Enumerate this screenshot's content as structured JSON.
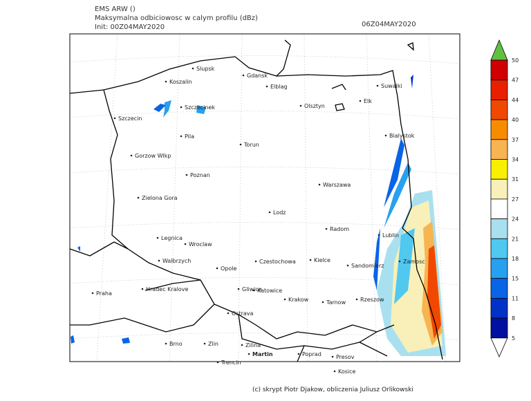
{
  "header": {
    "model": "EMS ARW ()",
    "field": "Maksymalna odbiciowosc w calym profilu (dBz)",
    "init": "Init: 00Z04MAY2020",
    "valid": "06Z04MAY2020"
  },
  "cities": [
    "Slupsk",
    "Gdansk",
    "Koszalin",
    "Elblag",
    "Suwalki",
    "Szczecinek",
    "Olsztyn",
    "Elk",
    "Szczecin",
    "Bialystok",
    "Pila",
    "Torun",
    "Gorzow Wlkp",
    "Poznan",
    "Warszawa",
    "Zielona Gora",
    "Lodz",
    "Radom",
    "Legnica",
    "Wroclaw",
    "Lublin",
    "Walbrzych",
    "Opole",
    "Czestochowa",
    "Kielce",
    "Sandomierz",
    "Zamosc",
    "Praha",
    "Hradec Kralove",
    "Gliwice",
    "Katowice",
    "Krakow",
    "Tarnow",
    "Rzeszow",
    "Ostrava",
    "Brno",
    "Zlin",
    "Zilina",
    "Martin",
    "Poprad",
    "Presov",
    "Kosice",
    "Trencin"
  ],
  "colorbar": {
    "ticks": [
      "50",
      "47",
      "44",
      "40",
      "37",
      "34",
      "31",
      "27",
      "24",
      "21",
      "18",
      "15",
      "11",
      "8",
      "5"
    ],
    "colors": [
      "#d00000",
      "#e82000",
      "#f04800",
      "#f88c00",
      "#f8b450",
      "#f8f000",
      "#f8f0b8",
      "#ffffff",
      "#a8e0f0",
      "#50c8f0",
      "#28a0f0",
      "#0a64e6",
      "#0032c8",
      "#0010a0"
    ],
    "over_color": "#60c040",
    "under_color": "#ffffff"
  },
  "footer": "(c) skrypt Piotr Djakow, obliczenia Juliusz Orlikowski"
}
